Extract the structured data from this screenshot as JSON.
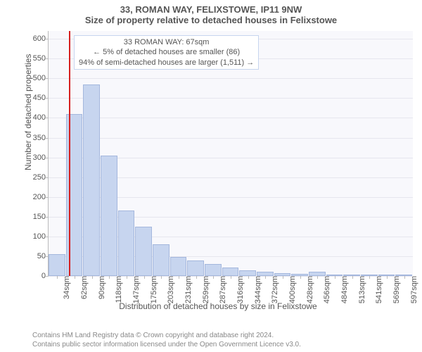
{
  "title": "33, ROMAN WAY, FELIXSTOWE, IP11 9NW",
  "subtitle": "Size of property relative to detached houses in Felixstowe",
  "yaxis_label": "Number of detached properties",
  "xaxis_label": "Distribution of detached houses by size in Felixstowe",
  "chart": {
    "type": "histogram",
    "y_max": 620,
    "y_ticks": [
      0,
      50,
      100,
      150,
      200,
      250,
      300,
      350,
      400,
      450,
      500,
      550,
      600
    ],
    "x_labels": [
      "34sqm",
      "62sqm",
      "90sqm",
      "118sqm",
      "147sqm",
      "175sqm",
      "203sqm",
      "231sqm",
      "259sqm",
      "287sqm",
      "316sqm",
      "344sqm",
      "372sqm",
      "400sqm",
      "428sqm",
      "456sqm",
      "484sqm",
      "513sqm",
      "541sqm",
      "569sqm",
      "597sqm"
    ],
    "values": [
      55,
      410,
      485,
      305,
      165,
      125,
      80,
      48,
      40,
      30,
      22,
      15,
      10,
      8,
      5,
      10,
      3,
      3,
      2,
      2,
      2
    ],
    "bar_fill": "#c7d5ef",
    "bar_stroke": "#a4b7dd",
    "plot_bg": "#f8f8fc",
    "grid_color": "#e6e6ee",
    "ref_line_x": 67,
    "ref_line_color": "#d62020",
    "annotation": {
      "line1": "33 ROMAN WAY: 67sqm",
      "line2": "← 5% of detached houses are smaller (86)",
      "line3": "94% of semi-detached houses are larger (1,511) →"
    }
  },
  "footer": {
    "line1": "Contains HM Land Registry data © Crown copyright and database right 2024.",
    "line2": "Contains public sector information licensed under the Open Government Licence v3.0."
  }
}
